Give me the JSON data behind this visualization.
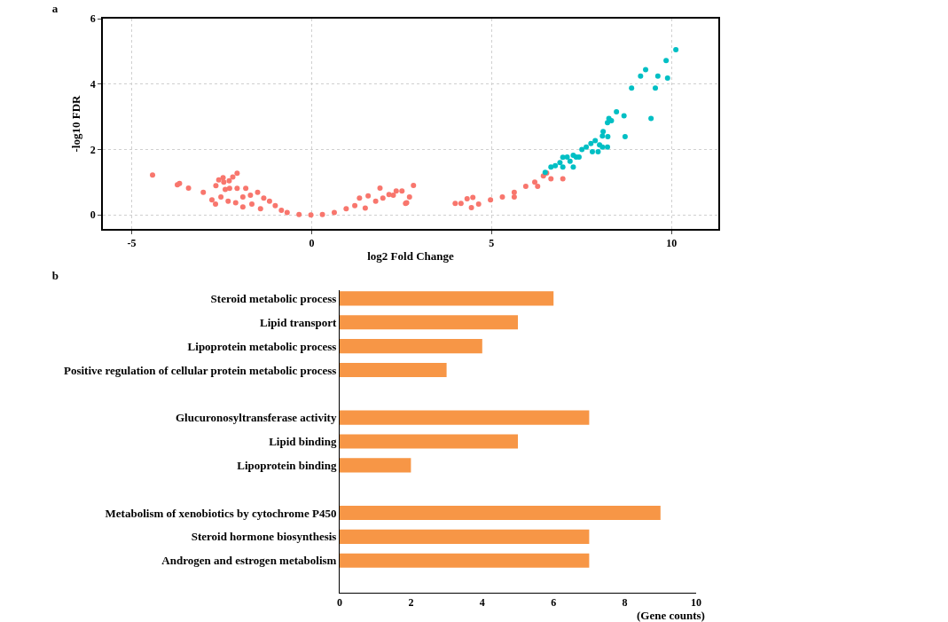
{
  "chart_data": [
    {
      "type": "scatter",
      "title": "a",
      "xlabel": "log2 Fold Change",
      "ylabel": "-log10 FDR",
      "xlim": [
        -5.8,
        11.3
      ],
      "ylim": [
        -0.43,
        6
      ],
      "xticks": [
        -5,
        0,
        5,
        10
      ],
      "yticks": [
        0,
        2,
        4,
        6
      ],
      "grid": true,
      "marker": "circle",
      "series": [
        {
          "color": "#f8766d",
          "x": [
            -4.42,
            -3.73,
            -3.67,
            -3.42,
            -3.01,
            -2.77,
            -2.67,
            -2.66,
            -2.58,
            -2.46,
            -2.29,
            -2.19,
            -2.07,
            -2.44,
            -2.28,
            -2.07,
            -1.83,
            -2.4,
            -2.52,
            -2.32,
            -2.11,
            -1.91,
            -1.7,
            -1.5,
            -1.33,
            -1.91,
            -1.66,
            -1.42,
            -1.17,
            -1.01,
            -0.84,
            -0.68,
            -0.35,
            -0.02,
            0.3,
            0.63,
            0.96,
            1.2,
            1.33,
            1.49,
            1.57,
            1.78,
            1.9,
            1.98,
            2.15,
            2.27,
            2.35,
            2.51,
            2.61,
            2.64,
            2.72,
            2.83,
            3.99,
            4.15,
            4.32,
            4.48,
            4.44,
            4.64,
            4.97,
            5.3,
            5.63,
            5.63,
            5.95,
            6.2,
            6.28,
            6.44,
            6.65,
            6.98,
            6.53
          ],
          "values": [
            1.22,
            0.92,
            0.96,
            0.82,
            0.69,
            0.46,
            0.33,
            0.89,
            1.07,
            1.14,
            1.04,
            1.16,
            1.27,
            1.0,
            0.81,
            0.81,
            0.81,
            0.78,
            0.55,
            0.42,
            0.37,
            0.55,
            0.6,
            0.69,
            0.51,
            0.24,
            0.33,
            0.19,
            0.42,
            0.28,
            0.14,
            0.07,
            0.01,
            0.0,
            0.01,
            0.07,
            0.19,
            0.28,
            0.51,
            0.21,
            0.58,
            0.42,
            0.82,
            0.51,
            0.62,
            0.6,
            0.73,
            0.73,
            0.35,
            0.37,
            0.55,
            0.9,
            0.35,
            0.35,
            0.49,
            0.53,
            0.22,
            0.33,
            0.46,
            0.55,
            0.69,
            0.55,
            0.87,
            1.0,
            0.87,
            1.19,
            1.1,
            1.1,
            1.28
          ]
        },
        {
          "color": "#00bfc4",
          "x": [
            6.49,
            6.65,
            6.77,
            6.9,
            6.98,
            7.1,
            7.18,
            7.27,
            7.35,
            7.27,
            6.98,
            7.43,
            7.51,
            7.63,
            7.76,
            7.88,
            7.8,
            7.96,
            8.0,
            8.08,
            8.22,
            8.08,
            8.1,
            8.23,
            8.22,
            8.33,
            8.26,
            8.47,
            8.68,
            8.71,
            8.89,
            9.14,
            9.28,
            9.43,
            9.55,
            9.62,
            9.85,
            9.89,
            10.12
          ],
          "values": [
            1.3,
            1.46,
            1.5,
            1.6,
            1.76,
            1.77,
            1.64,
            1.82,
            1.77,
            1.46,
            1.46,
            1.77,
            2.0,
            2.07,
            2.18,
            2.27,
            1.93,
            1.93,
            2.14,
            2.07,
            2.07,
            2.41,
            2.55,
            2.39,
            2.82,
            2.88,
            2.95,
            3.15,
            3.03,
            2.39,
            3.88,
            4.24,
            4.44,
            2.95,
            3.88,
            4.24,
            4.72,
            4.18,
            5.05
          ]
        }
      ]
    },
    {
      "type": "bar",
      "orientation": "horizontal",
      "title": "b",
      "xlabel": "(Gene counts)",
      "xlim": [
        0,
        10
      ],
      "xticks": [
        0,
        2,
        4,
        6,
        8,
        10
      ],
      "color": "#f79646",
      "categories": [
        "Steroid metabolic process",
        "Lipid transport",
        "Lipoprotein metabolic process",
        "Positive regulation of cellular protein metabolic process",
        null,
        "Glucuronosyltransferase activity",
        "Lipid binding",
        "Lipoprotein binding",
        null,
        "Metabolism of xenobiotics by cytochrome P450",
        "Steroid hormone biosynthesis",
        "Androgen and estrogen metabolism",
        null
      ],
      "values": [
        6,
        5,
        4,
        3,
        null,
        7,
        5,
        2,
        null,
        9,
        7,
        7,
        null
      ]
    }
  ]
}
